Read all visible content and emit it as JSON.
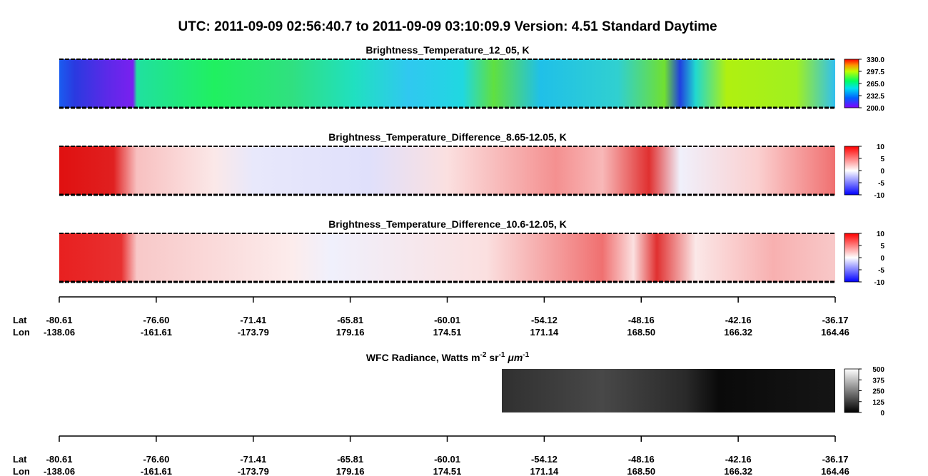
{
  "title": "UTC:  2011-09-09   02:56:40.7  to  2011-09-09   03:10:09.9    Version: 4.51  Standard Daytime",
  "panels": [
    {
      "title": "Brightness_Temperature_12_05, K",
      "range": [
        200,
        330
      ],
      "ticks": [
        {
          "value": 330,
          "label": "330.0"
        },
        {
          "value": 297.5,
          "label": "297.5"
        },
        {
          "value": 265,
          "label": "265.0"
        },
        {
          "value": 232.5,
          "label": "232.5"
        },
        {
          "value": 200,
          "label": "200.0"
        }
      ]
    },
    {
      "title": "Brightness_Temperature_Difference_8.65-12.05, K",
      "range": [
        -10,
        10
      ],
      "ticks": [
        10,
        5,
        0,
        -5,
        -10
      ]
    },
    {
      "title": "Brightness_Temperature_Difference_10.6-12.05, K",
      "range": [
        -10,
        10
      ],
      "ticks": [
        10,
        5,
        0,
        -5,
        -10
      ]
    }
  ],
  "wfc": {
    "title": {
      "text": "WFC Radiance, Watts m",
      "sup1": "-2",
      "mid1": " sr",
      "sup2": "-1",
      "mid2": " μm",
      "sup3": "-1"
    },
    "range": [
      0,
      500
    ],
    "ticks": [
      500,
      375,
      250,
      125,
      0
    ]
  },
  "axis": {
    "lat_label": "Lat",
    "lon_label": "Lon",
    "lat": [
      "-80.61",
      "-76.60",
      "-71.41",
      "-65.81",
      "-60.01",
      "-54.12",
      "-48.16",
      "-42.16",
      "-36.17"
    ],
    "lon": [
      "-138.06",
      "-161.61",
      "-173.79",
      "179.16",
      "174.51",
      "171.14",
      "168.50",
      "166.32",
      "164.46"
    ]
  }
}
